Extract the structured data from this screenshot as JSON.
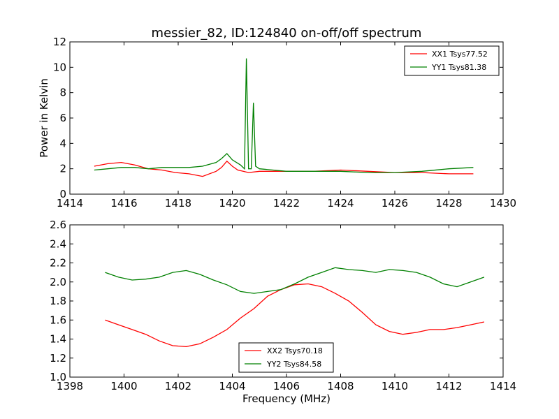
{
  "chart_data": [
    {
      "type": "line",
      "title": "messier_82, ID:124840 on-off/off spectrum",
      "xlabel": "",
      "ylabel": "Power in Kelvin",
      "xlim": [
        1414,
        1430
      ],
      "ylim": [
        0,
        12
      ],
      "xticks": [
        "1414",
        "1416",
        "1418",
        "1420",
        "1422",
        "1424",
        "1426",
        "1428",
        "1430"
      ],
      "yticks": [
        "0",
        "2",
        "4",
        "6",
        "8",
        "10",
        "12"
      ],
      "grid": false,
      "legend_position": "top-right",
      "series": [
        {
          "name": "XX1 Tsys77.52",
          "color": "#ff0000",
          "x": [
            1414.9,
            1415.4,
            1415.9,
            1416.4,
            1416.9,
            1417.4,
            1417.9,
            1418.4,
            1418.9,
            1419.4,
            1419.6,
            1419.8,
            1420.0,
            1420.2,
            1420.4,
            1420.6,
            1421.0,
            1421.5,
            1422.0,
            1423.0,
            1424.0,
            1425.0,
            1426.0,
            1427.0,
            1428.0,
            1428.9
          ],
          "y": [
            2.2,
            2.4,
            2.5,
            2.3,
            2.0,
            1.9,
            1.7,
            1.6,
            1.4,
            1.8,
            2.1,
            2.6,
            2.2,
            1.9,
            1.8,
            1.7,
            1.8,
            1.8,
            1.8,
            1.8,
            1.9,
            1.8,
            1.7,
            1.7,
            1.6,
            1.6
          ]
        },
        {
          "name": "YY1 Tsys81.38",
          "color": "#008000",
          "x": [
            1414.9,
            1415.4,
            1415.9,
            1416.4,
            1416.9,
            1417.4,
            1417.9,
            1418.4,
            1418.9,
            1419.4,
            1419.6,
            1419.8,
            1420.0,
            1420.3,
            1420.45,
            1420.52,
            1420.6,
            1420.7,
            1420.78,
            1420.86,
            1421.0,
            1421.5,
            1422.0,
            1423.0,
            1424.0,
            1425.0,
            1426.0,
            1427.0,
            1428.0,
            1428.9
          ],
          "y": [
            1.9,
            2.0,
            2.1,
            2.1,
            2.0,
            2.1,
            2.1,
            2.1,
            2.2,
            2.5,
            2.8,
            3.2,
            2.7,
            2.3,
            2.0,
            10.7,
            2.0,
            2.0,
            7.2,
            2.2,
            2.0,
            1.9,
            1.8,
            1.8,
            1.8,
            1.7,
            1.7,
            1.8,
            2.0,
            2.1
          ]
        }
      ]
    },
    {
      "type": "line",
      "title": "",
      "xlabel": "Frequency (MHz)",
      "ylabel": "",
      "xlim": [
        1398,
        1414
      ],
      "ylim": [
        1.0,
        2.6
      ],
      "xticks": [
        "1398",
        "1400",
        "1402",
        "1404",
        "1406",
        "1408",
        "1410",
        "1412",
        "1414"
      ],
      "yticks": [
        "1.0",
        "1.2",
        "1.4",
        "1.6",
        "1.8",
        "2.0",
        "2.2",
        "2.4",
        "2.6"
      ],
      "grid": false,
      "legend_position": "lower-center",
      "series": [
        {
          "name": "XX2 Tsys70.18",
          "color": "#ff0000",
          "x": [
            1399.3,
            1399.8,
            1400.3,
            1400.8,
            1401.3,
            1401.8,
            1402.3,
            1402.8,
            1403.3,
            1403.8,
            1404.3,
            1404.8,
            1405.3,
            1405.8,
            1406.3,
            1406.8,
            1407.3,
            1407.8,
            1408.3,
            1408.8,
            1409.3,
            1409.8,
            1410.3,
            1410.8,
            1411.3,
            1411.8,
            1412.3,
            1412.8,
            1413.3
          ],
          "y": [
            1.6,
            1.55,
            1.5,
            1.45,
            1.38,
            1.33,
            1.32,
            1.35,
            1.42,
            1.5,
            1.62,
            1.72,
            1.85,
            1.92,
            1.97,
            1.98,
            1.95,
            1.88,
            1.8,
            1.68,
            1.55,
            1.48,
            1.45,
            1.47,
            1.5,
            1.5,
            1.52,
            1.55,
            1.58
          ]
        },
        {
          "name": "YY2 Tsys84.58",
          "color": "#008000",
          "x": [
            1399.3,
            1399.8,
            1400.3,
            1400.8,
            1401.3,
            1401.8,
            1402.3,
            1402.8,
            1403.3,
            1403.8,
            1404.3,
            1404.8,
            1405.3,
            1405.8,
            1406.3,
            1406.8,
            1407.3,
            1407.8,
            1408.3,
            1408.8,
            1409.3,
            1409.8,
            1410.3,
            1410.8,
            1411.3,
            1411.8,
            1412.3,
            1412.8,
            1413.3
          ],
          "y": [
            2.1,
            2.05,
            2.02,
            2.03,
            2.05,
            2.1,
            2.12,
            2.08,
            2.02,
            1.97,
            1.9,
            1.88,
            1.9,
            1.92,
            1.98,
            2.05,
            2.1,
            2.15,
            2.13,
            2.12,
            2.1,
            2.13,
            2.12,
            2.1,
            2.05,
            1.98,
            1.95,
            2.0,
            2.05
          ]
        }
      ]
    }
  ]
}
